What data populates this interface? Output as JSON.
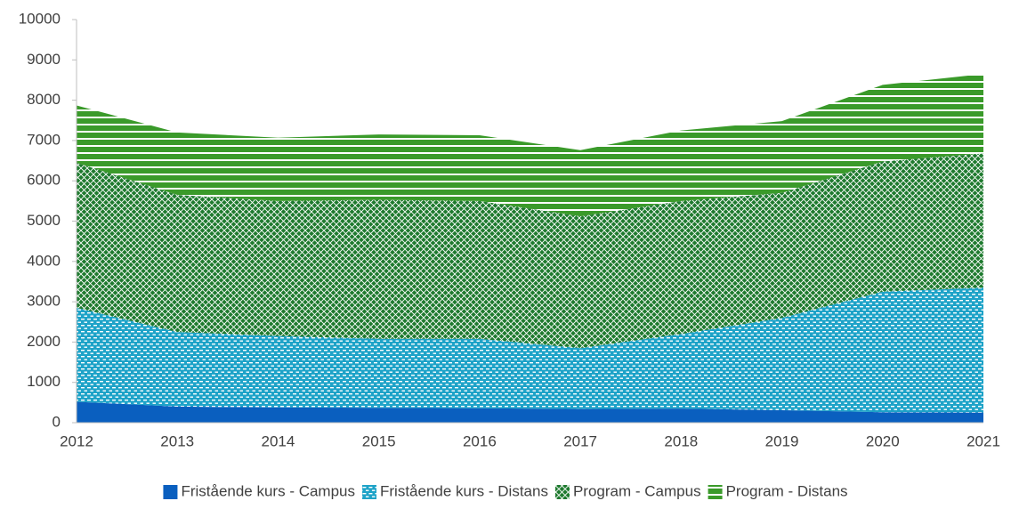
{
  "chart_data": {
    "type": "stacked_area",
    "categories": [
      "2012",
      "2013",
      "2014",
      "2015",
      "2016",
      "2017",
      "2018",
      "2019",
      "2020",
      "2021"
    ],
    "series": [
      {
        "name": "Fristående kurs - Campus",
        "color": "#0a5fbf",
        "pattern": "solid",
        "values": [
          520,
          400,
          380,
          370,
          360,
          340,
          350,
          310,
          260,
          250
        ]
      },
      {
        "name": "Fristående kurs - Distans",
        "color": "#1ea3c8",
        "pattern": "dots",
        "values": [
          2330,
          1850,
          1770,
          1710,
          1720,
          1510,
          1850,
          2290,
          2990,
          3100
        ]
      },
      {
        "name": "Program - Campus",
        "color": "#1e7a2e",
        "pattern": "crosshatch",
        "values": [
          3600,
          3400,
          3350,
          3450,
          3420,
          3270,
          3300,
          3100,
          3230,
          3330
        ]
      },
      {
        "name": "Program - Distans",
        "color": "#3a9a2a",
        "pattern": "hlines",
        "values": [
          1420,
          1550,
          1570,
          1620,
          1630,
          1640,
          1750,
          1780,
          1900,
          1970
        ]
      }
    ],
    "ylim": [
      0,
      10000
    ],
    "yticks": [
      0,
      1000,
      2000,
      3000,
      4000,
      5000,
      6000,
      7000,
      8000,
      9000,
      10000
    ],
    "grid": false,
    "legend": "bottom"
  }
}
